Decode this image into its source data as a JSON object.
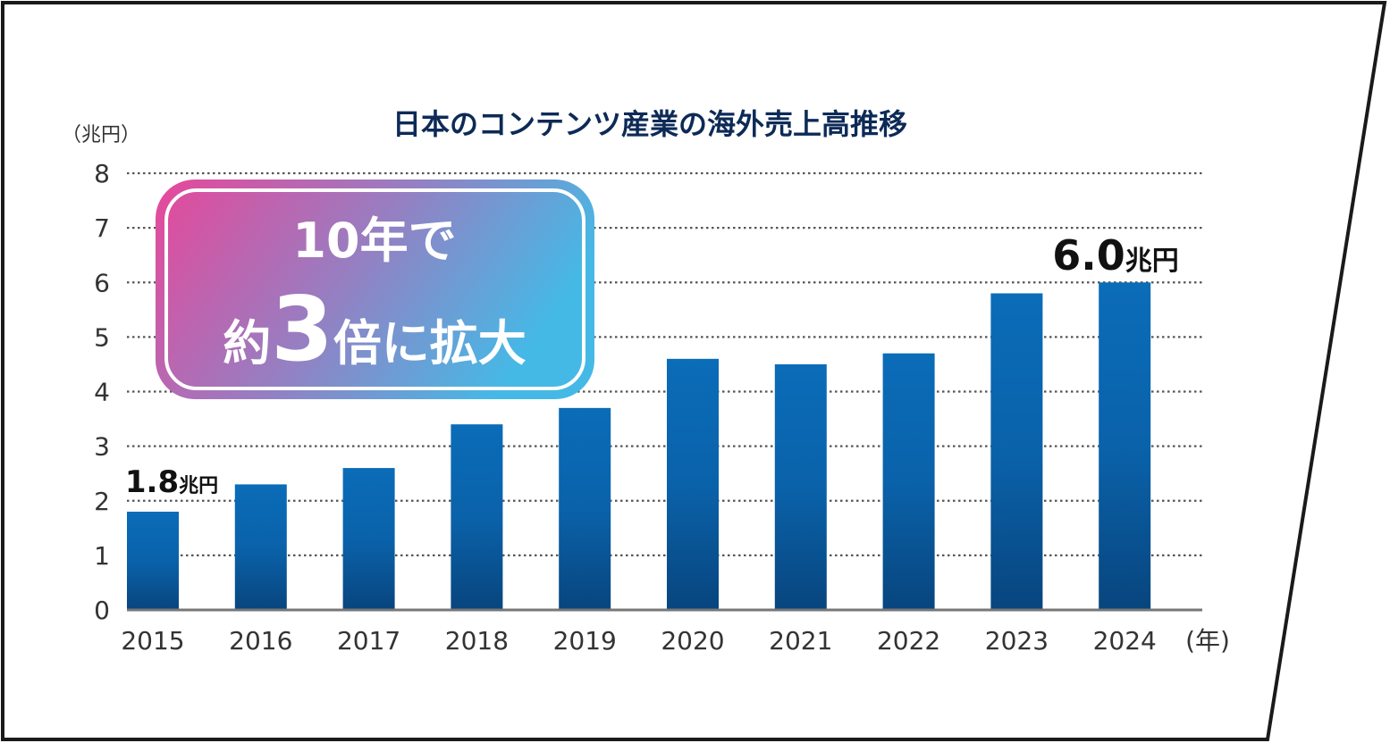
{
  "chart_data": {
    "type": "bar",
    "title": "日本のコンテンツ産業の海外売上高推移",
    "y_unit_label": "（兆円）",
    "x_unit_label": "(年)",
    "categories": [
      "2015",
      "2016",
      "2017",
      "2018",
      "2019",
      "2020",
      "2021",
      "2022",
      "2023",
      "2024"
    ],
    "values": [
      1.8,
      2.3,
      2.6,
      3.4,
      3.7,
      4.6,
      4.5,
      4.7,
      5.8,
      6.0
    ],
    "ylim": [
      0,
      8
    ],
    "yticks": [
      0,
      1,
      2,
      3,
      4,
      5,
      6,
      7,
      8
    ],
    "grid": true,
    "annotations": [
      {
        "category": "2015",
        "value_text": "1.8",
        "unit": "兆円"
      },
      {
        "category": "2024",
        "value_text": "6.0",
        "unit": "兆円"
      }
    ],
    "callout": {
      "line1": "10年で",
      "prefix": "約",
      "number": "3",
      "suffix": "倍に拡大"
    },
    "colors": {
      "bar_top": "#0b6cb8",
      "bar_bottom": "#08457e",
      "title": "#0d2a57",
      "callout_start": "#e8479a",
      "callout_end": "#45b9e6"
    }
  }
}
